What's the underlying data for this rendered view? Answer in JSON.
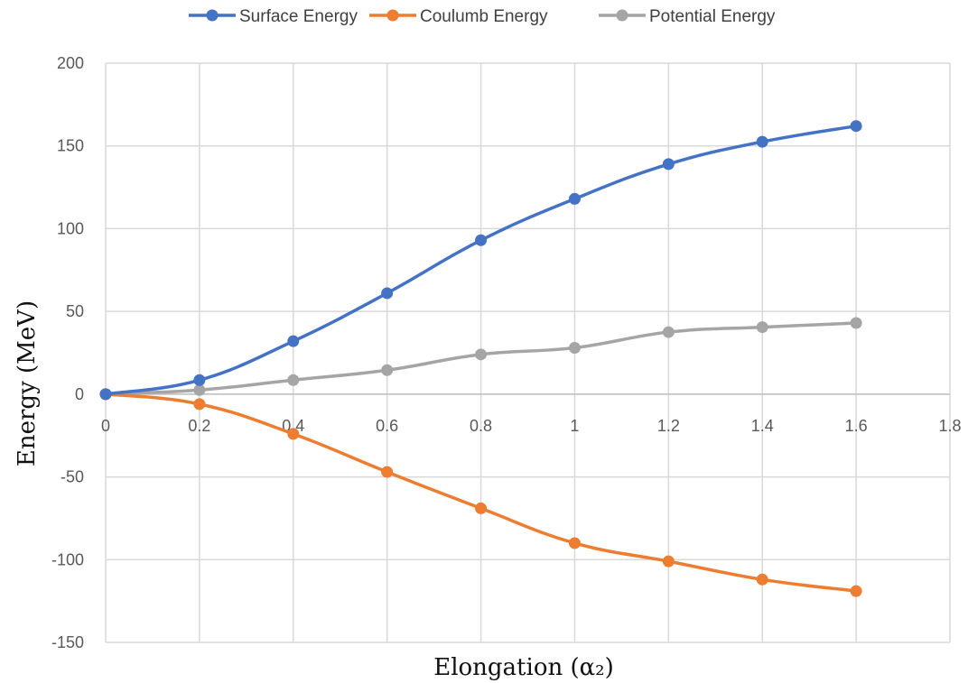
{
  "chart_data": {
    "type": "line",
    "title": "",
    "xlabel": "Elongation (α₂)",
    "ylabel": "Energy (MeV)",
    "xlim": [
      0,
      1.8
    ],
    "ylim": [
      -150,
      200
    ],
    "x_ticks": [
      "0",
      "0.2",
      "0.4",
      "0.6",
      "0.8",
      "1",
      "1.2",
      "1.4",
      "1.6",
      "1.8"
    ],
    "y_ticks": [
      "200",
      "150",
      "100",
      "50",
      "0",
      "-50",
      "-100",
      "-150"
    ],
    "x": [
      0,
      0.2,
      0.4,
      0.6,
      0.8,
      1.0,
      1.2,
      1.4,
      1.6
    ],
    "series": [
      {
        "name": "Surface Energy",
        "color": "#4472C4",
        "values": [
          0,
          8.5,
          32,
          61,
          93,
          118,
          139,
          152.5,
          162
        ]
      },
      {
        "name": "Coulumb Energy",
        "color": "#ED7D31",
        "values": [
          0,
          -6,
          -24,
          -47,
          -69,
          -90,
          -101,
          -112,
          -119
        ]
      },
      {
        "name": "Potential Energy",
        "color": "#A5A5A5",
        "values": [
          0,
          2.5,
          8.5,
          14.5,
          24,
          28,
          37.5,
          40.5,
          43
        ]
      }
    ],
    "grid": true,
    "legend_position": "top-center"
  }
}
